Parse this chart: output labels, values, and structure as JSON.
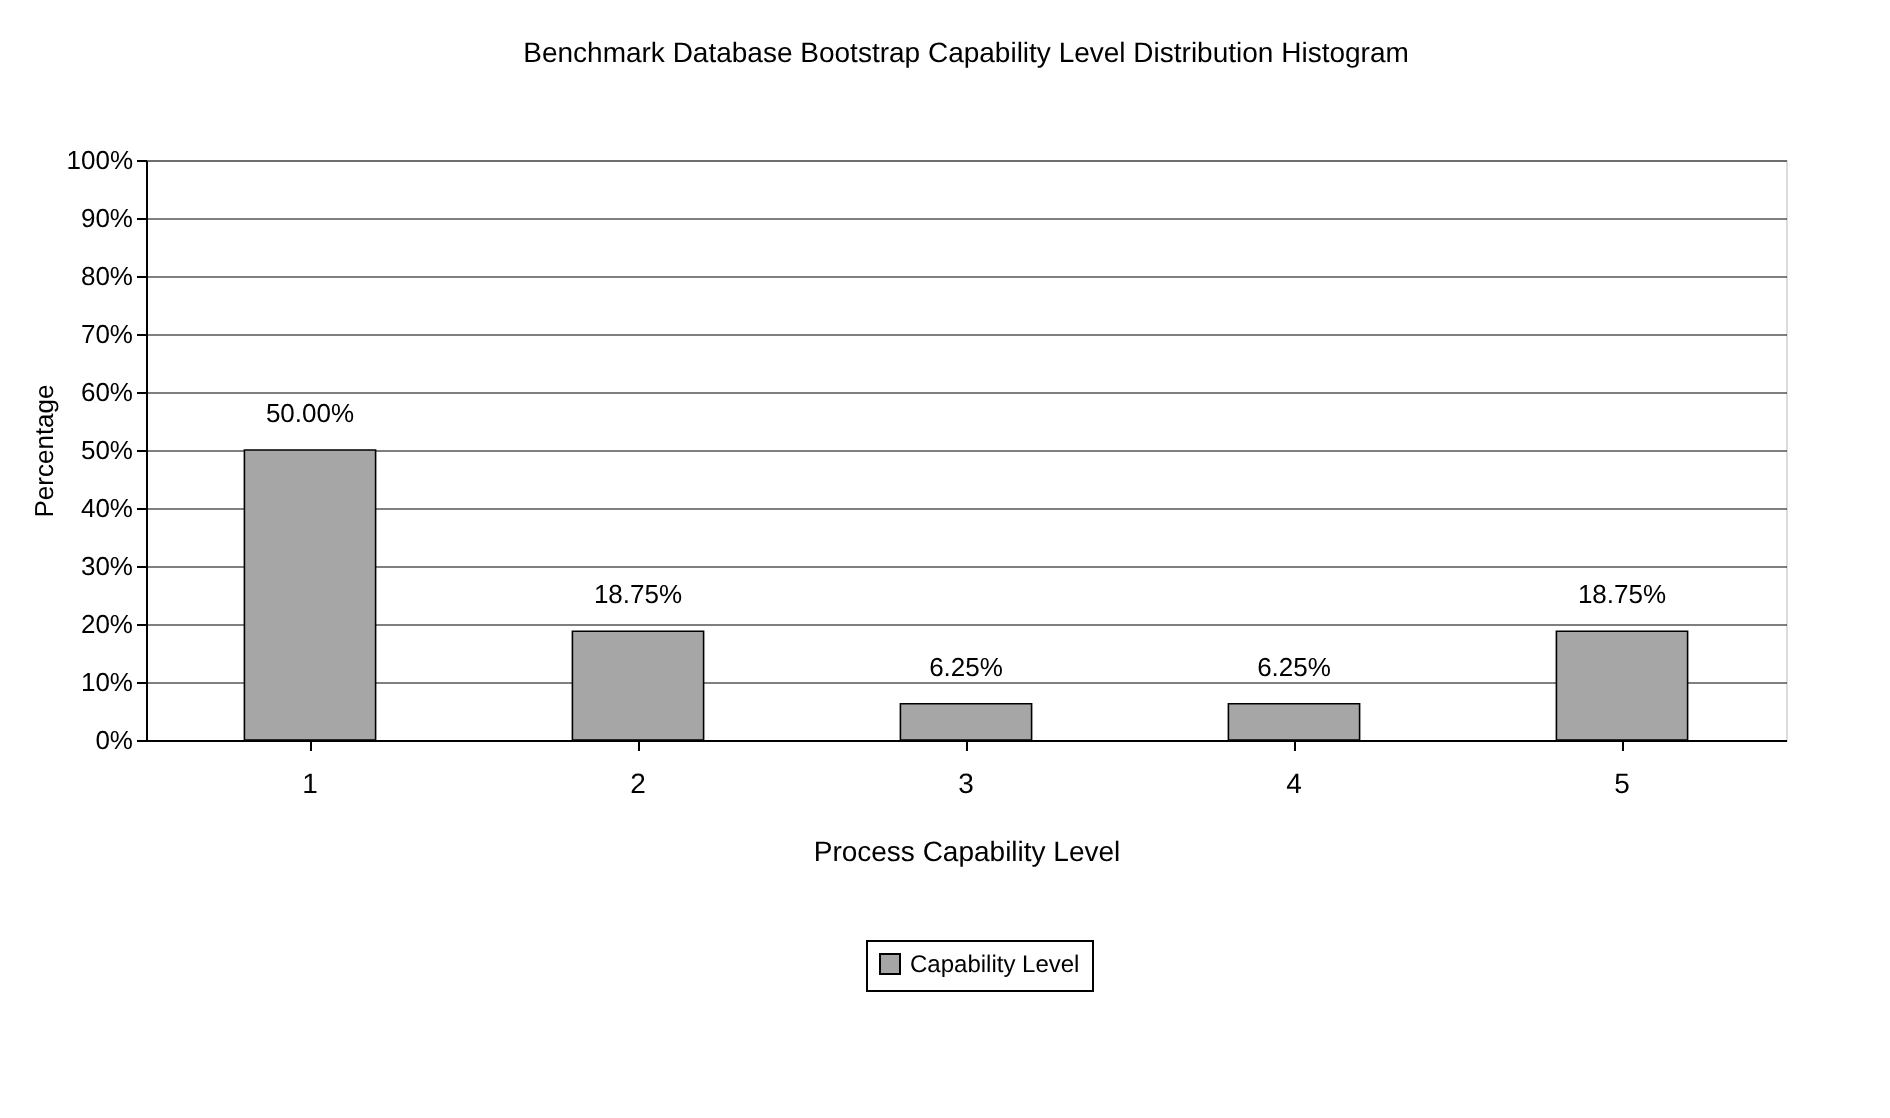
{
  "chart_data": {
    "type": "bar",
    "title": "Benchmark Database Bootstrap Capability Level Distribution Histogram",
    "xlabel": "Process Capability Level",
    "ylabel": "Percentage",
    "categories": [
      "1",
      "2",
      "3",
      "4",
      "5"
    ],
    "series": [
      {
        "name": "Capability Level",
        "color": "#a6a6a6",
        "values": [
          50,
          18.75,
          6.25,
          6.25,
          18.75
        ],
        "value_labels": [
          "50.00%",
          "18.75%",
          "6.25%",
          "6.25%",
          "18.75%"
        ]
      }
    ],
    "ylim": [
      0,
      100
    ],
    "yticks": [
      {
        "value": 0,
        "label": "0%"
      },
      {
        "value": 10,
        "label": "10%"
      },
      {
        "value": 20,
        "label": "20%"
      },
      {
        "value": 30,
        "label": "30%"
      },
      {
        "value": 40,
        "label": "40%"
      },
      {
        "value": 50,
        "label": "50%"
      },
      {
        "value": 60,
        "label": "60%"
      },
      {
        "value": 70,
        "label": "70%"
      },
      {
        "value": 80,
        "label": "80%"
      },
      {
        "value": 90,
        "label": "90%"
      },
      {
        "value": 100,
        "label": "100%"
      }
    ],
    "grid": "y",
    "legend": "bottom"
  }
}
